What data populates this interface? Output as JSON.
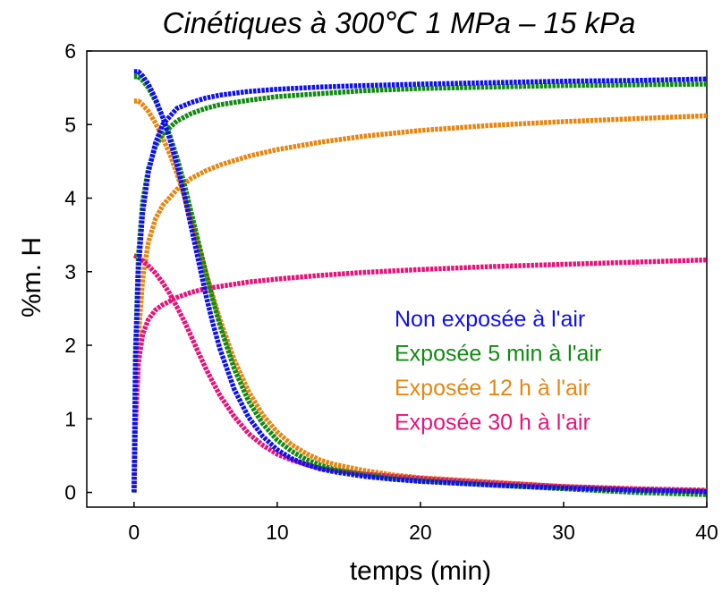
{
  "chart_data": {
    "type": "line",
    "title": "Cinétiques à 300℃ 1 MPa – 15 kPa",
    "xlabel": "temps (min)",
    "ylabel": "%m. H",
    "xlim": [
      -3.3,
      40
    ],
    "ylim": [
      -0.2,
      6
    ],
    "xticks": [
      0,
      10,
      20,
      30,
      40
    ],
    "yticks": [
      0,
      1,
      2,
      3,
      4,
      5,
      6
    ],
    "grid": false,
    "legend_position": "center-right",
    "series": [
      {
        "name": "Non exposée à l'air",
        "color": "#1010ee",
        "absorption": {
          "x": [
            0,
            0.1,
            0.3,
            0.6,
            1,
            1.5,
            2,
            3,
            4,
            5,
            6,
            8,
            10,
            13,
            16,
            20,
            25,
            30,
            35,
            40
          ],
          "y": [
            0,
            1.8,
            3.0,
            3.8,
            4.35,
            4.75,
            5.0,
            5.22,
            5.3,
            5.36,
            5.4,
            5.45,
            5.48,
            5.51,
            5.53,
            5.55,
            5.57,
            5.59,
            5.6,
            5.62
          ]
        },
        "desorption": {
          "x": [
            0,
            0.3,
            0.6,
            1,
            1.5,
            2,
            2.5,
            3,
            3.5,
            4,
            4.5,
            5,
            5.5,
            6,
            7,
            8,
            9,
            10,
            11,
            12,
            13,
            14,
            16,
            18,
            20,
            25,
            30,
            35,
            40
          ],
          "y": [
            5.72,
            5.72,
            5.66,
            5.55,
            5.35,
            5.1,
            4.8,
            4.45,
            4.05,
            3.6,
            3.15,
            2.7,
            2.3,
            1.95,
            1.4,
            1.02,
            0.76,
            0.58,
            0.46,
            0.38,
            0.32,
            0.28,
            0.22,
            0.18,
            0.15,
            0.1,
            0.06,
            0.03,
            0.01
          ]
        }
      },
      {
        "name": "Exposée 5 min à l'air",
        "color": "#118a11",
        "absorption": {
          "x": [
            0,
            0.1,
            0.3,
            0.6,
            1,
            1.5,
            2,
            3,
            4,
            5,
            6,
            8,
            10,
            13,
            16,
            20,
            25,
            30,
            35,
            40
          ],
          "y": [
            0,
            1.9,
            3.2,
            3.95,
            4.4,
            4.7,
            4.87,
            5.05,
            5.15,
            5.22,
            5.27,
            5.33,
            5.38,
            5.42,
            5.46,
            5.49,
            5.51,
            5.53,
            5.54,
            5.55
          ]
        },
        "desorption": {
          "x": [
            0,
            0.3,
            0.6,
            1,
            1.5,
            2,
            2.5,
            3,
            3.5,
            4,
            4.5,
            5,
            5.5,
            6,
            7,
            8,
            9,
            10,
            11,
            12,
            13,
            14,
            16,
            18,
            20,
            25,
            30,
            35,
            40
          ],
          "y": [
            5.65,
            5.65,
            5.6,
            5.5,
            5.32,
            5.1,
            4.85,
            4.55,
            4.2,
            3.8,
            3.4,
            3.0,
            2.62,
            2.27,
            1.68,
            1.24,
            0.93,
            0.71,
            0.56,
            0.45,
            0.37,
            0.31,
            0.24,
            0.19,
            0.16,
            0.1,
            0.05,
            0.0,
            -0.03
          ]
        }
      },
      {
        "name": "Exposée 12 h à l'air",
        "color": "#e58712",
        "absorption": {
          "x": [
            0,
            0.1,
            0.3,
            0.6,
            1,
            1.5,
            2,
            3,
            4,
            5,
            6,
            8,
            10,
            13,
            16,
            20,
            25,
            30,
            35,
            40
          ],
          "y": [
            0,
            1.0,
            2.1,
            2.9,
            3.4,
            3.72,
            3.9,
            4.12,
            4.27,
            4.37,
            4.45,
            4.57,
            4.66,
            4.76,
            4.84,
            4.92,
            4.99,
            5.04,
            5.08,
            5.12
          ]
        },
        "desorption": {
          "x": [
            0,
            0.3,
            0.6,
            1,
            1.5,
            2,
            2.5,
            3,
            3.5,
            4,
            4.5,
            5,
            5.5,
            6,
            7,
            8,
            9,
            10,
            11,
            12,
            13,
            14,
            16,
            18,
            20,
            25,
            30,
            35,
            40
          ],
          "y": [
            5.32,
            5.32,
            5.27,
            5.18,
            5.02,
            4.82,
            4.6,
            4.33,
            4.03,
            3.7,
            3.35,
            3.0,
            2.67,
            2.35,
            1.8,
            1.37,
            1.05,
            0.82,
            0.65,
            0.53,
            0.44,
            0.38,
            0.3,
            0.24,
            0.2,
            0.14,
            0.08,
            0.04,
            0.02
          ]
        }
      },
      {
        "name": "Exposée 30 h à l'air",
        "color": "#e4147c",
        "absorption": {
          "x": [
            0,
            0.1,
            0.3,
            0.6,
            1,
            1.5,
            2,
            3,
            4,
            5,
            6,
            8,
            10,
            13,
            16,
            20,
            25,
            30,
            35,
            40
          ],
          "y": [
            0,
            0.9,
            1.75,
            2.15,
            2.35,
            2.48,
            2.55,
            2.65,
            2.72,
            2.77,
            2.8,
            2.86,
            2.9,
            2.95,
            2.99,
            3.03,
            3.07,
            3.1,
            3.13,
            3.16
          ]
        },
        "desorption": {
          "x": [
            0,
            0.3,
            0.6,
            1,
            1.5,
            2,
            2.5,
            3,
            3.5,
            4,
            4.5,
            5,
            5.5,
            6,
            7,
            8,
            9,
            10,
            11,
            12,
            13,
            14,
            16,
            18,
            20,
            25,
            30,
            35,
            40
          ],
          "y": [
            3.22,
            3.2,
            3.15,
            3.08,
            2.98,
            2.85,
            2.7,
            2.52,
            2.33,
            2.12,
            1.9,
            1.69,
            1.5,
            1.32,
            1.03,
            0.8,
            0.64,
            0.52,
            0.44,
            0.38,
            0.33,
            0.3,
            0.25,
            0.22,
            0.19,
            0.13,
            0.08,
            0.05,
            0.03
          ]
        }
      }
    ]
  }
}
